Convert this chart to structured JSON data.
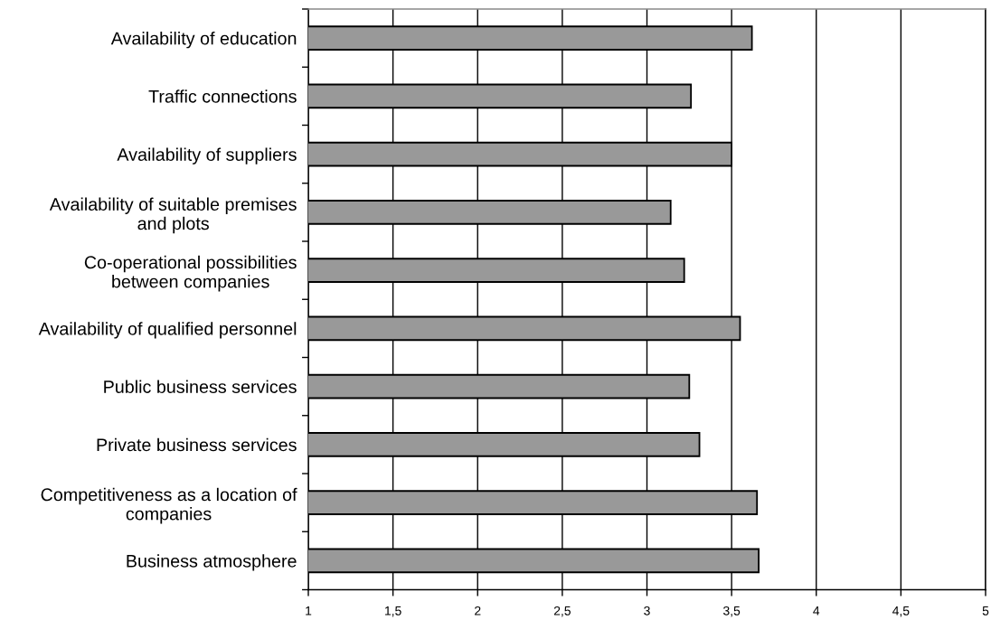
{
  "chart_data": {
    "type": "bar",
    "orientation": "horizontal",
    "categories": [
      "Availability of education",
      "Traffic connections",
      "Availability of suppliers",
      "Availability of suitable premises\nand plots",
      "Co-operational possibilities\nbetween companies",
      "Availability of qualified personnel",
      "Public business services",
      "Private business services",
      "Competitiveness as a location of\ncompanies",
      "Business atmosphere"
    ],
    "values": [
      3.62,
      3.26,
      3.5,
      3.14,
      3.22,
      3.55,
      3.25,
      3.31,
      3.65,
      3.66
    ],
    "color": "#999999",
    "xlim": [
      1,
      5
    ],
    "xticks": [
      1,
      {
        "value": 1.5,
        "label": "1,5"
      },
      2,
      {
        "value": 2.5,
        "label": "2,5"
      },
      3,
      {
        "value": 3.5,
        "label": "3,5"
      },
      4,
      {
        "value": 4.5,
        "label": "4,5"
      },
      5
    ],
    "grid": "x"
  }
}
